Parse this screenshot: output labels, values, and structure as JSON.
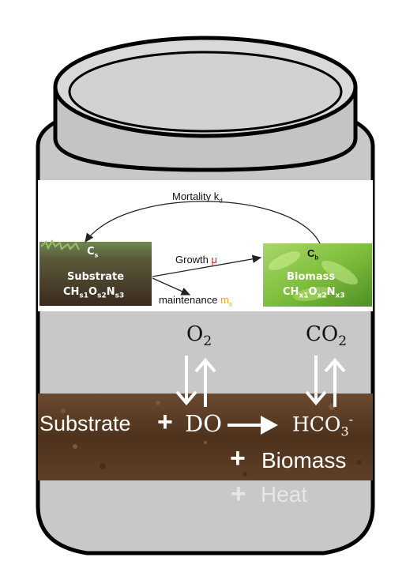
{
  "kinetics": {
    "mortality": {
      "label": "Mortality k",
      "sub": "d"
    },
    "growth": {
      "label": "Growth ",
      "symbol": "μ",
      "symbol_color": "#e3191b"
    },
    "maintenance": {
      "label": "maintenance ",
      "symbol": "m",
      "sub": "s",
      "symbol_color": "#e8a72a"
    },
    "substrate": {
      "conc": "C",
      "conc_sub": "s",
      "name": "Substrate",
      "formula": [
        "CH",
        "s1",
        "O",
        "s2",
        "N",
        "s3"
      ]
    },
    "biomass": {
      "conc": "C",
      "conc_sub": "b",
      "name": "Biomass",
      "formula": [
        "CH",
        "x1",
        "O",
        "x2",
        "N",
        "x3"
      ]
    }
  },
  "gas": {
    "o2": {
      "base": "O",
      "sub": "2"
    },
    "co2": {
      "base": "CO",
      "sub": "2"
    }
  },
  "reaction": {
    "reactant": "Substrate",
    "plus1": "+",
    "oxygen": "DO",
    "product_base": "HCO",
    "product_sub": "3",
    "product_sup": "-",
    "plus2": "+",
    "biomass": "Biomass",
    "plus3": "+",
    "heat": "Heat"
  },
  "colors": {
    "jar_fill": "#c8c8c8",
    "jar_outline": "#000000",
    "soil": "#5b3a22",
    "heat_text": "#e6e6e6"
  }
}
